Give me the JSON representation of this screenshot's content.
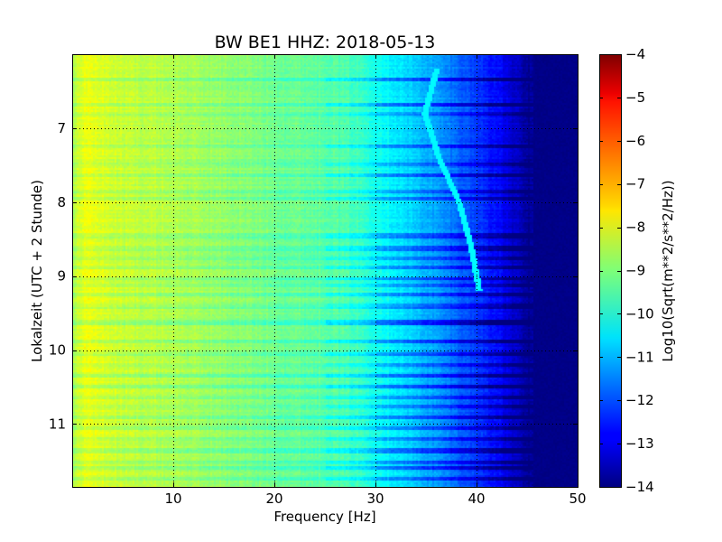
{
  "chart_data": {
    "type": "heatmap",
    "title": "BW BE1 HHZ: 2018-05-13",
    "xlabel": "Frequency [Hz]",
    "ylabel": "Lokalzeit (UTC + 2 Stunde)",
    "colorbar_label": "Log10(Sqrt(m**2/s**2/Hz))",
    "xlim": [
      0,
      50
    ],
    "ylim": [
      6.0,
      11.85
    ],
    "y_inverted": true,
    "x_ticks": [
      10,
      20,
      30,
      40,
      50
    ],
    "x_tick_labels": [
      "10",
      "20",
      "30",
      "40",
      "50"
    ],
    "y_ticks": [
      7,
      8,
      9,
      10,
      11
    ],
    "y_tick_labels": [
      "7",
      "8",
      "9",
      "10",
      "11"
    ],
    "grid": true,
    "grid_style": "dotted",
    "colormap": "jet",
    "color_range": [
      -14,
      -4
    ],
    "colorbar_ticks": [
      -4,
      -5,
      -6,
      -7,
      -8,
      -9,
      -10,
      -11,
      -12,
      -13,
      -14
    ],
    "colorbar_tick_labels": [
      "−4",
      "−5",
      "−6",
      "−7",
      "−8",
      "−9",
      "−10",
      "−11",
      "−12",
      "−13",
      "−14"
    ],
    "frequency_profile": {
      "frequency_hz": [
        0,
        1,
        2,
        3,
        5,
        8,
        10,
        15,
        20,
        25,
        28,
        30,
        32,
        34,
        36,
        38,
        40,
        42,
        44,
        45,
        50
      ],
      "log10_amplitude": [
        -8.6,
        -7.9,
        -8.0,
        -8.1,
        -8.3,
        -8.4,
        -8.5,
        -8.8,
        -9.1,
        -9.3,
        -9.6,
        -10.0,
        -10.4,
        -10.8,
        -11.2,
        -11.7,
        -12.2,
        -12.7,
        -13.4,
        -13.8,
        -14.0
      ]
    },
    "horizontal_bands": [
      {
        "time": 6.33,
        "delta": -1.2
      },
      {
        "time": 6.68,
        "delta": -1.4
      },
      {
        "time": 6.8,
        "delta": -0.7
      },
      {
        "time": 7.25,
        "delta": -1.1
      },
      {
        "time": 7.48,
        "delta": -0.8
      },
      {
        "time": 7.64,
        "delta": -1.2
      },
      {
        "time": 7.85,
        "delta": -0.7
      },
      {
        "time": 7.95,
        "delta": -0.9
      },
      {
        "time": 8.45,
        "delta": -1.0
      },
      {
        "time": 8.62,
        "delta": -1.1
      },
      {
        "time": 8.75,
        "delta": -0.8
      },
      {
        "time": 8.88,
        "delta": -0.9
      },
      {
        "time": 9.02,
        "delta": -1.0
      },
      {
        "time": 9.12,
        "delta": -0.7
      },
      {
        "time": 9.25,
        "delta": -0.9
      },
      {
        "time": 9.4,
        "delta": -0.8
      },
      {
        "time": 9.62,
        "delta": -1.5
      },
      {
        "time": 9.88,
        "delta": -1.2
      },
      {
        "time": 10.05,
        "delta": -1.0
      },
      {
        "time": 10.2,
        "delta": -0.9
      },
      {
        "time": 10.35,
        "delta": -1.1
      },
      {
        "time": 10.48,
        "delta": -1.2
      },
      {
        "time": 10.62,
        "delta": -0.8
      },
      {
        "time": 10.75,
        "delta": -0.9
      },
      {
        "time": 10.9,
        "delta": -1.0
      },
      {
        "time": 11.05,
        "delta": -0.8
      },
      {
        "time": 11.2,
        "delta": -0.9
      },
      {
        "time": 11.35,
        "delta": -1.1
      },
      {
        "time": 11.5,
        "delta": -1.0
      },
      {
        "time": 11.58,
        "delta": -1.2
      },
      {
        "time": 11.72,
        "delta": -0.9
      }
    ],
    "drifting_line": {
      "time": [
        6.2,
        6.8,
        7.4,
        8.0,
        8.6,
        9.2
      ],
      "frequency_hz": [
        36.0,
        34.8,
        36.2,
        38.2,
        39.4,
        40.2
      ],
      "log10_amplitude": -10.3
    }
  }
}
